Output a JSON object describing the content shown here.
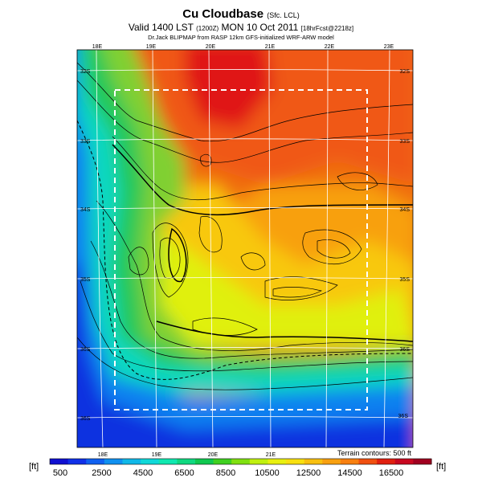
{
  "title": {
    "main": "Cu Cloudbase",
    "main_suffix": "(Sfc. LCL)",
    "valid_prefix": "Valid 1400 LST",
    "valid_code": "(1200Z)",
    "valid_date": "MON 10 Oct 2011",
    "valid_suffix": "[18hrFcst@2218z]",
    "credit": "Dr.Jack BLIPMAP from RASP 12km GFS-initialized WRF-ARW model"
  },
  "map": {
    "top_lon_labels": [
      "18E",
      "19E",
      "20E",
      "21E",
      "22E",
      "23E"
    ],
    "bottom_lon_labels": [
      "18E",
      "19E",
      "20E",
      "21E"
    ],
    "left_lat_labels": [
      "32S",
      "33S",
      "34S",
      "35S",
      "36S"
    ],
    "right_lat_labels": [
      "32S",
      "33S",
      "34S",
      "35S",
      "36S"
    ],
    "bottom_left_lat_label": "36S",
    "bottom_right_lat_label": "36S",
    "terrain_note": "Terrain contours: 500 ft"
  },
  "colorbar": {
    "unit_left": "[ft]",
    "unit_right": "[ft]",
    "labels": [
      "500",
      "2500",
      "4500",
      "6500",
      "8500",
      "10500",
      "12500",
      "14500",
      "16500"
    ],
    "colors": [
      "#1010d0",
      "#1030e8",
      "#1060f0",
      "#1090f0",
      "#10b8e8",
      "#10d8d8",
      "#10e8b0",
      "#10d880",
      "#10c850",
      "#40d020",
      "#80e010",
      "#c0f010",
      "#e8f010",
      "#f8e010",
      "#f8c010",
      "#f8a010",
      "#f88010",
      "#f05010",
      "#e02010",
      "#c80820",
      "#a00020"
    ]
  }
}
